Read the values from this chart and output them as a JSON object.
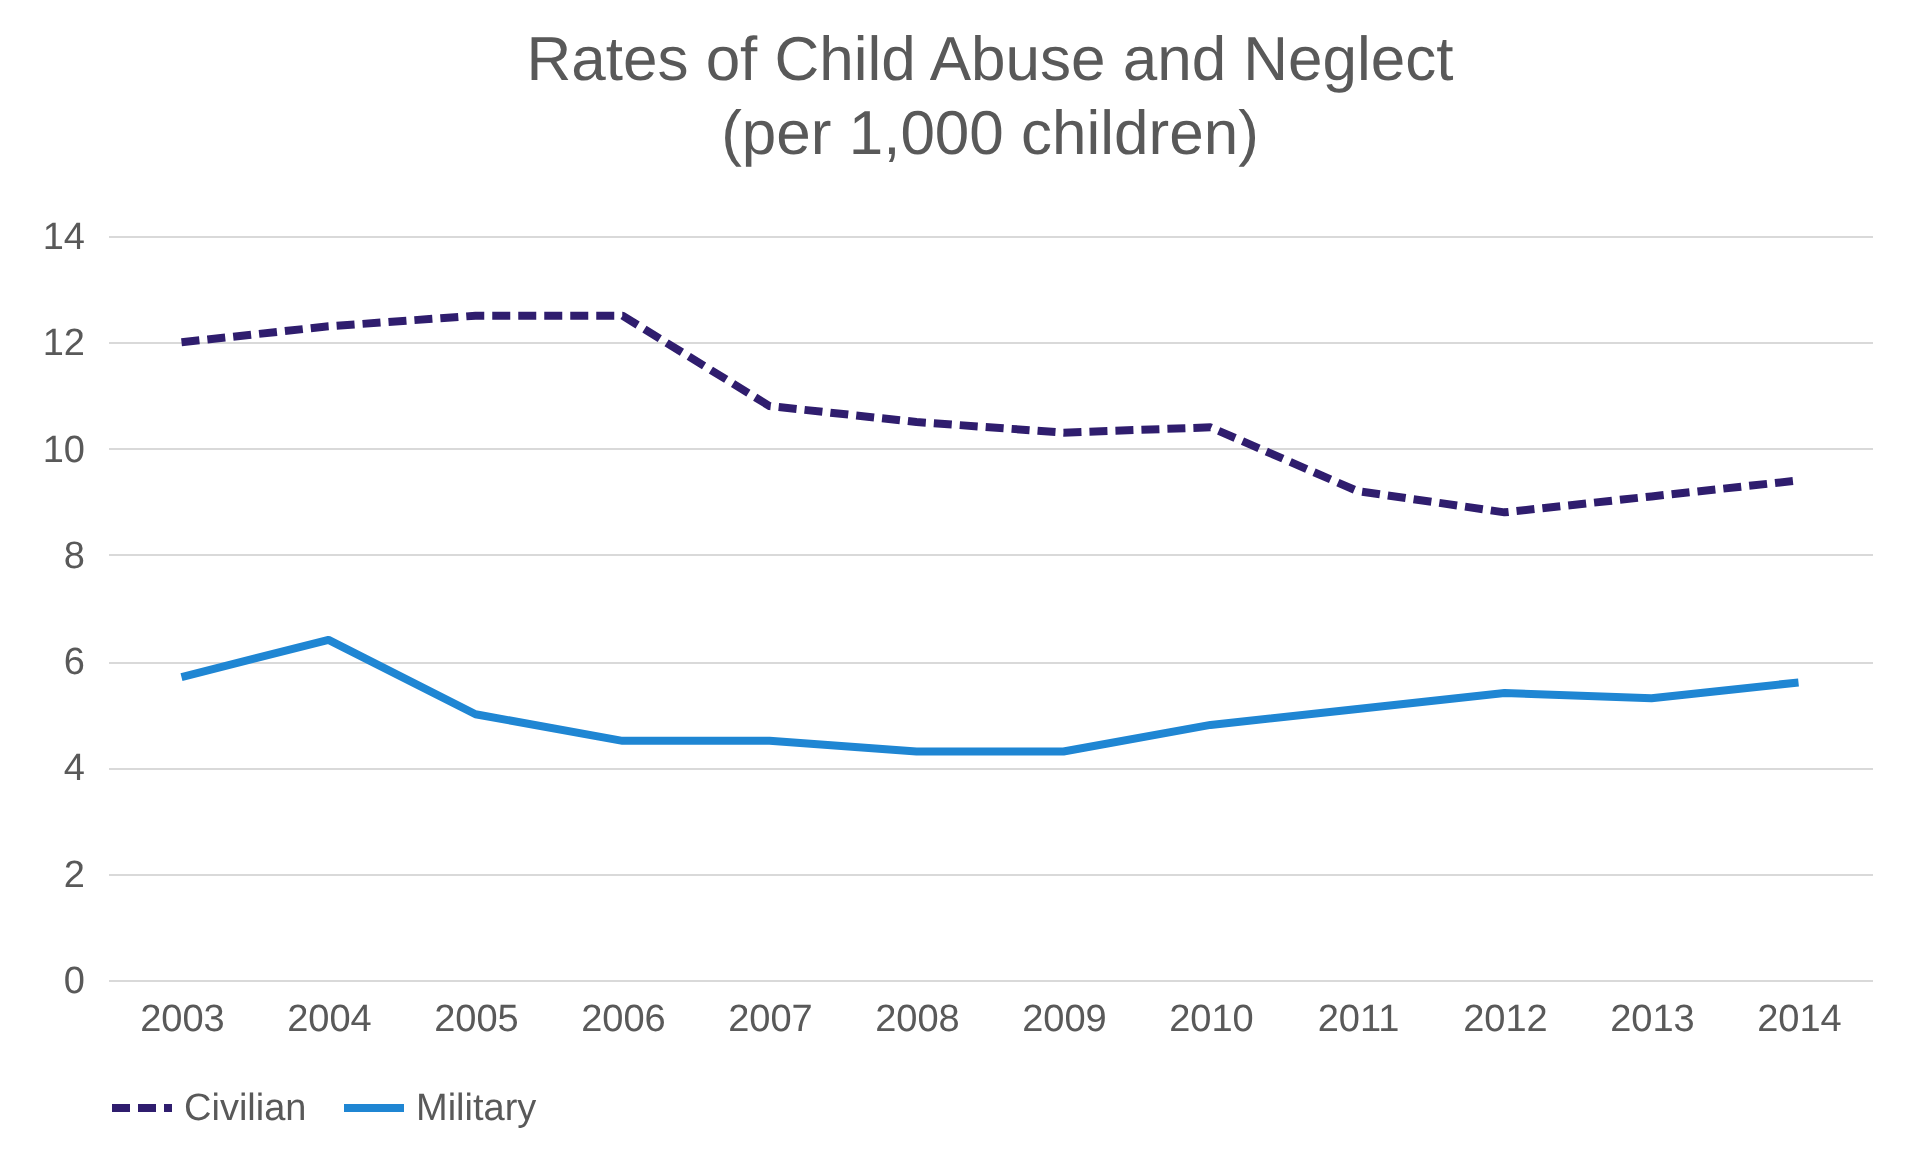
{
  "chart_data": {
    "type": "line",
    "title": "Rates of Child Abuse and Neglect",
    "subtitle": "(per 1,000 children)",
    "categories": [
      "2003",
      "2004",
      "2005",
      "2006",
      "2007",
      "2008",
      "2009",
      "2010",
      "2011",
      "2012",
      "2013",
      "2014"
    ],
    "series": [
      {
        "name": "Civilian",
        "color": "#2f1d6e",
        "line_style": "dashed",
        "values": [
          12.0,
          12.3,
          12.5,
          12.5,
          10.8,
          10.5,
          10.3,
          10.4,
          9.2,
          8.8,
          9.1,
          9.4
        ]
      },
      {
        "name": "Military",
        "color": "#1f86d3",
        "line_style": "solid",
        "values": [
          5.7,
          6.4,
          5.0,
          4.5,
          4.5,
          4.3,
          4.3,
          4.8,
          5.1,
          5.4,
          5.3,
          5.6
        ]
      }
    ],
    "ylim": [
      0,
      14
    ],
    "yticks": [
      0,
      2,
      4,
      6,
      8,
      10,
      12,
      14
    ],
    "grid": "y",
    "legend": "bottom",
    "marker": "none"
  }
}
